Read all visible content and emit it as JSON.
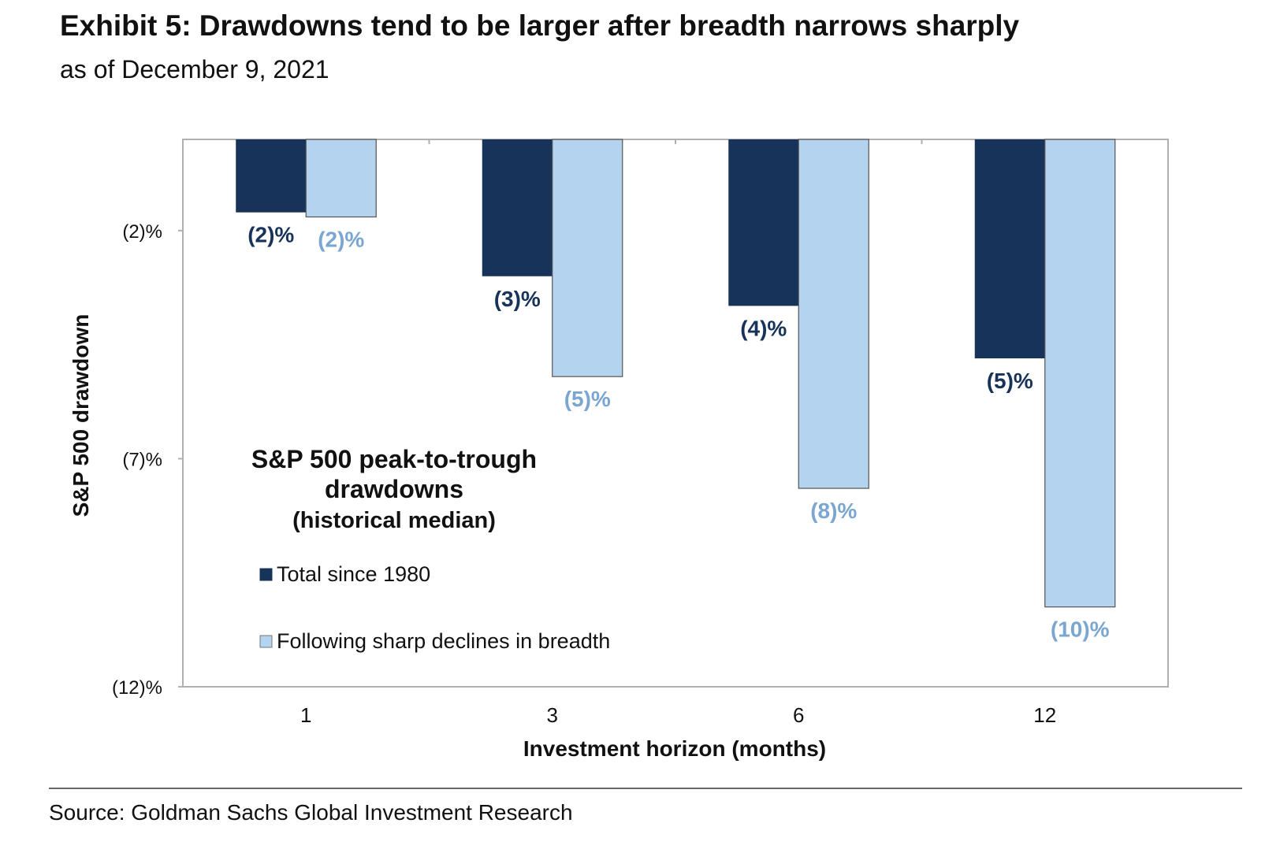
{
  "header": {
    "title": "Exhibit 5: Drawdowns tend to be larger after breadth narrows sharply",
    "subtitle": "as of December 9, 2021"
  },
  "footer": {
    "source": "Source: Goldman Sachs Global Investment Research"
  },
  "colors": {
    "series_total": "#17335a",
    "series_following": "#b3d3ee",
    "label_total": "#17335a",
    "label_following": "#7aa6d1",
    "frame": "#b0b0b0"
  },
  "chart_data": {
    "type": "bar",
    "categories": [
      "1",
      "3",
      "6",
      "12"
    ],
    "series": [
      {
        "name": "Total since 1980",
        "values": [
          -1.6,
          -3.0,
          -3.65,
          -4.8
        ],
        "labels": [
          "(2)%",
          "(3)%",
          "(4)%",
          "(5)%"
        ]
      },
      {
        "name": "Following sharp declines in breadth",
        "values": [
          -1.7,
          -5.2,
          -7.65,
          -10.25
        ],
        "labels": [
          "(2)%",
          "(5)%",
          "(8)%",
          "(10)%"
        ]
      }
    ],
    "annotation": [
      "S&P 500 peak-to-trough",
      "drawdowns",
      "(historical median)"
    ],
    "xlabel": "Investment horizon (months)",
    "ylabel": "S&P 500 drawdown",
    "ylim": [
      -12,
      0
    ],
    "yticks": [
      -2,
      -7,
      -12
    ],
    "ytick_labels": [
      "(2)%",
      "(7)%",
      "(12)%"
    ],
    "legend_position": "lower-left inside plot",
    "grid": false
  }
}
